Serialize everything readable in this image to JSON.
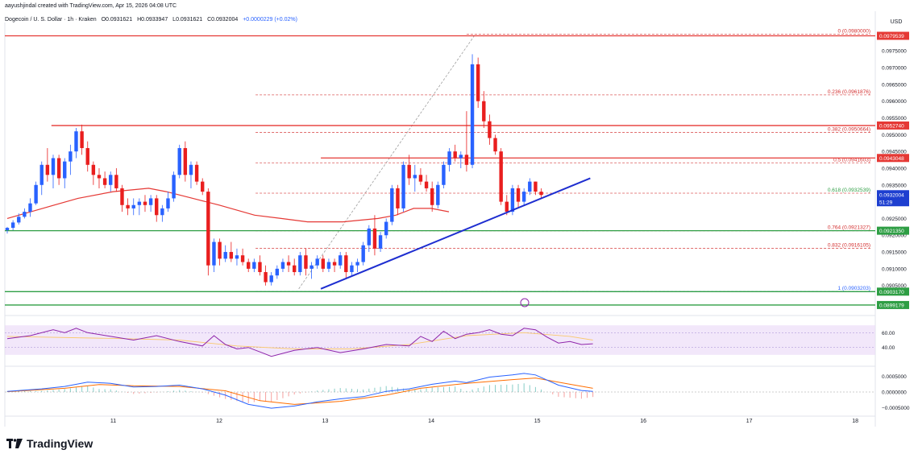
{
  "header": {
    "byline": "aayushjindal created with TradingView.com, Apr 15, 2026 04:08 UTC",
    "symbol": "Dogecoin / U. S. Dollar · 1h · Kraken",
    "open": "O0.0931621",
    "high": "H0.0933947",
    "low": "L0.0931621",
    "close": "C0.0932004",
    "change": "+0.0000229 (+0.02%)"
  },
  "brand": {
    "name": "TradingView"
  },
  "colors": {
    "up": "#2962ff",
    "down": "#e91e1e",
    "sma": "#e53935",
    "support": "#2e9e44",
    "resistance": "#e53935",
    "trendline": "#1e2ed0",
    "fib": "#d32f2f",
    "rsi_band": "#ead7f7",
    "rsi": "#8e24aa",
    "macd": "#2962ff",
    "signal": "#ff6d00"
  },
  "chart_data": [
    {
      "type": "candlestick",
      "currency": "USD",
      "x_ticks": [
        "11",
        "12",
        "13",
        "14",
        "15",
        "16",
        "17",
        "18"
      ],
      "x_tick_hours": [
        24,
        48,
        72,
        96,
        120,
        144,
        168,
        192
      ],
      "ylim": [
        0.0897,
        0.09825
      ],
      "y_ticks": [
        0.0905,
        0.091,
        0.0915,
        0.092,
        0.0925,
        0.093,
        0.0935,
        0.094,
        0.0945,
        0.095,
        0.0955,
        0.096,
        0.0965,
        0.097,
        0.0975
      ],
      "y_tick_labels": [
        "0.0905000",
        "0.0910000",
        "0.0915000",
        "0.0920000",
        "0.0925000",
        "0.0930000",
        "0.0935000",
        "0.0940000",
        "0.0945000",
        "0.0950000",
        "0.0955000",
        "0.0960000",
        "0.0965000",
        "0.0970000",
        "0.0975000"
      ],
      "price_levels": [
        {
          "value": 0.09795,
          "label": "0.0979539",
          "kind": "resistance"
        },
        {
          "value": 0.095274,
          "label": "0.0952740",
          "kind": "resistance"
        },
        {
          "value": 0.0943048,
          "label": "0.0943048",
          "kind": "resistance"
        },
        {
          "value": 0.092135,
          "label": "0.0921350",
          "kind": "support"
        },
        {
          "value": 0.090317,
          "label": "0.0903170",
          "kind": "support"
        },
        {
          "value": 0.0899179,
          "label": "0.0899179",
          "kind": "support"
        }
      ],
      "current_price": {
        "value": 0.0932004,
        "label": "0.0932004",
        "countdown": "51:29"
      },
      "fibonacci": [
        {
          "ratio": "0",
          "value": 0.098,
          "label": "0 (0.0980000)"
        },
        {
          "ratio": "0.236",
          "value": 0.0961876,
          "label": "0.236 (0.0961876)"
        },
        {
          "ratio": "0.382",
          "value": 0.0950664,
          "label": "0.382 (0.0950664)"
        },
        {
          "ratio": "0.5",
          "value": 0.0941603,
          "label": "0.5 (0.0941603)"
        },
        {
          "ratio": "0.618",
          "value": 0.0932539,
          "label": "0.618 (0.0932539)"
        },
        {
          "ratio": "0.764",
          "value": 0.0921327,
          "label": "0.764 (0.0921327)"
        },
        {
          "ratio": "0.832",
          "value": 0.0916105,
          "label": "0.832 (0.0916105)"
        },
        {
          "ratio": "1",
          "value": 0.0903203,
          "label": "1 (0.0903203)"
        }
      ],
      "fib_hour_range": [
        69,
        127
      ],
      "fib_diagonal": {
        "from_hour": 66,
        "from_value": 0.0904,
        "to_hour": 106,
        "to_value": 0.098
      },
      "trendline": {
        "from_hour": 71,
        "from_value": 0.0904,
        "to_hour": 132,
        "to_value": 0.0937
      },
      "start_hour": 0,
      "candles": [
        [
          0.09215,
          0.09225,
          0.09205,
          0.09222
        ],
        [
          0.09222,
          0.09245,
          0.09215,
          0.09238
        ],
        [
          0.09238,
          0.09265,
          0.09232,
          0.09255
        ],
        [
          0.09255,
          0.0928,
          0.0925,
          0.0927
        ],
        [
          0.0927,
          0.0931,
          0.09255,
          0.09295
        ],
        [
          0.09295,
          0.0936,
          0.0929,
          0.0935
        ],
        [
          0.0935,
          0.0942,
          0.0932,
          0.0941
        ],
        [
          0.0941,
          0.0946,
          0.0936,
          0.0938
        ],
        [
          0.0938,
          0.0944,
          0.0934,
          0.0943
        ],
        [
          0.0943,
          0.0944,
          0.0935,
          0.0937
        ],
        [
          0.0937,
          0.0943,
          0.0934,
          0.0942
        ],
        [
          0.0942,
          0.0947,
          0.0938,
          0.0945
        ],
        [
          0.0945,
          0.0952,
          0.0943,
          0.0951
        ],
        [
          0.0951,
          0.0953,
          0.0944,
          0.0946
        ],
        [
          0.0946,
          0.0948,
          0.0939,
          0.0941
        ],
        [
          0.0941,
          0.0942,
          0.0935,
          0.0938
        ],
        [
          0.0938,
          0.094,
          0.0934,
          0.0937
        ],
        [
          0.0937,
          0.0939,
          0.0934,
          0.0935
        ],
        [
          0.0935,
          0.0939,
          0.0933,
          0.0938
        ],
        [
          0.0938,
          0.094,
          0.0933,
          0.0934
        ],
        [
          0.0934,
          0.0935,
          0.0927,
          0.0929
        ],
        [
          0.0929,
          0.0931,
          0.0926,
          0.0928
        ],
        [
          0.0928,
          0.0931,
          0.0926,
          0.0929
        ],
        [
          0.0929,
          0.0931,
          0.0926,
          0.093
        ],
        [
          0.093,
          0.0932,
          0.0927,
          0.0929
        ],
        [
          0.0929,
          0.0932,
          0.0927,
          0.0931
        ],
        [
          0.0931,
          0.0932,
          0.0924,
          0.0926
        ],
        [
          0.0926,
          0.0929,
          0.0924,
          0.0928
        ],
        [
          0.0928,
          0.0933,
          0.0927,
          0.0931
        ],
        [
          0.0931,
          0.0939,
          0.093,
          0.0938
        ],
        [
          0.0938,
          0.0947,
          0.0937,
          0.0946
        ],
        [
          0.0946,
          0.0948,
          0.0936,
          0.0938
        ],
        [
          0.0938,
          0.0942,
          0.0934,
          0.0941
        ],
        [
          0.0941,
          0.0942,
          0.0935,
          0.0936
        ],
        [
          0.0936,
          0.0937,
          0.0932,
          0.0933
        ],
        [
          0.0933,
          0.0934,
          0.0908,
          0.0911
        ],
        [
          0.0911,
          0.0919,
          0.0909,
          0.0918
        ],
        [
          0.0918,
          0.0919,
          0.0911,
          0.0913
        ],
        [
          0.0913,
          0.0917,
          0.0912,
          0.0915
        ],
        [
          0.0915,
          0.0918,
          0.0912,
          0.0913
        ],
        [
          0.0913,
          0.0916,
          0.0911,
          0.0914
        ],
        [
          0.0914,
          0.0916,
          0.0911,
          0.0912
        ],
        [
          0.0912,
          0.0913,
          0.0909,
          0.091
        ],
        [
          0.091,
          0.0913,
          0.0909,
          0.0912
        ],
        [
          0.0912,
          0.0914,
          0.0908,
          0.0909
        ],
        [
          0.0909,
          0.0911,
          0.0905,
          0.0906
        ],
        [
          0.0906,
          0.0909,
          0.0905,
          0.0908
        ],
        [
          0.0908,
          0.0911,
          0.0907,
          0.091
        ],
        [
          0.091,
          0.0913,
          0.0909,
          0.0912
        ],
        [
          0.0912,
          0.0914,
          0.0909,
          0.0911
        ],
        [
          0.0911,
          0.0913,
          0.0908,
          0.0909
        ],
        [
          0.0909,
          0.0915,
          0.0908,
          0.0914
        ],
        [
          0.0914,
          0.0916,
          0.0908,
          0.091
        ],
        [
          0.091,
          0.0912,
          0.0907,
          0.0911
        ],
        [
          0.0911,
          0.0914,
          0.091,
          0.0913
        ],
        [
          0.0913,
          0.0914,
          0.0909,
          0.091
        ],
        [
          0.091,
          0.0913,
          0.0909,
          0.0912
        ],
        [
          0.0912,
          0.0913,
          0.0909,
          0.0911
        ],
        [
          0.0911,
          0.0915,
          0.091,
          0.0914
        ],
        [
          0.0914,
          0.0915,
          0.0907,
          0.0909
        ],
        [
          0.0909,
          0.0912,
          0.0908,
          0.0911
        ],
        [
          0.0911,
          0.0913,
          0.0909,
          0.0912
        ],
        [
          0.0912,
          0.0918,
          0.0911,
          0.0917
        ],
        [
          0.0917,
          0.0923,
          0.0915,
          0.0922
        ],
        [
          0.0922,
          0.0926,
          0.0914,
          0.0916
        ],
        [
          0.0916,
          0.0921,
          0.0915,
          0.092
        ],
        [
          0.092,
          0.0925,
          0.0919,
          0.0924
        ],
        [
          0.0924,
          0.0935,
          0.0923,
          0.0934
        ],
        [
          0.0934,
          0.0935,
          0.0926,
          0.0928
        ],
        [
          0.0928,
          0.0942,
          0.0927,
          0.0941
        ],
        [
          0.0941,
          0.0944,
          0.0935,
          0.0937
        ],
        [
          0.0937,
          0.0941,
          0.0933,
          0.0938
        ],
        [
          0.0938,
          0.094,
          0.0935,
          0.0936
        ],
        [
          0.0936,
          0.0938,
          0.0933,
          0.0934
        ],
        [
          0.0934,
          0.0936,
          0.0927,
          0.0929
        ],
        [
          0.0929,
          0.0936,
          0.0928,
          0.0935
        ],
        [
          0.0935,
          0.0942,
          0.0934,
          0.0941
        ],
        [
          0.0941,
          0.0946,
          0.0939,
          0.0945
        ],
        [
          0.0945,
          0.0947,
          0.0942,
          0.0943
        ],
        [
          0.0943,
          0.0945,
          0.094,
          0.0944
        ],
        [
          0.0944,
          0.0957,
          0.0939,
          0.0941
        ],
        [
          0.0941,
          0.0974,
          0.094,
          0.0971
        ],
        [
          0.0971,
          0.0973,
          0.0958,
          0.096
        ],
        [
          0.096,
          0.0963,
          0.0952,
          0.0954
        ],
        [
          0.0954,
          0.0956,
          0.0947,
          0.0949
        ],
        [
          0.0949,
          0.095,
          0.0944,
          0.0945
        ],
        [
          0.0945,
          0.0946,
          0.0929,
          0.093
        ],
        [
          0.093,
          0.0932,
          0.0926,
          0.0927
        ],
        [
          0.0927,
          0.0935,
          0.0926,
          0.0934
        ],
        [
          0.0934,
          0.0935,
          0.0928,
          0.093
        ],
        [
          0.093,
          0.0934,
          0.0929,
          0.0933
        ],
        [
          0.0933,
          0.0937,
          0.0932,
          0.0936
        ],
        [
          0.0936,
          0.0936,
          0.0932,
          0.0933
        ],
        [
          0.0933,
          0.0934,
          0.0931,
          0.0932
        ]
      ],
      "sma": [
        [
          0,
          0.0925
        ],
        [
          8,
          0.0928
        ],
        [
          16,
          0.0931
        ],
        [
          24,
          0.0933
        ],
        [
          32,
          0.0934
        ],
        [
          36,
          0.0933
        ],
        [
          42,
          0.0931
        ],
        [
          48,
          0.0929
        ],
        [
          56,
          0.0926
        ],
        [
          62,
          0.0925
        ],
        [
          68,
          0.0924
        ],
        [
          76,
          0.0924
        ],
        [
          84,
          0.0925
        ],
        [
          88,
          0.0926
        ],
        [
          92,
          0.0928
        ],
        [
          96,
          0.0928
        ],
        [
          100,
          0.0927
        ]
      ]
    },
    {
      "type": "line",
      "name_hidden": true,
      "ylim": [
        20,
        80
      ],
      "y_tick_labels": [
        "60.00",
        "40.00"
      ],
      "y_ticks": [
        60,
        40
      ],
      "band": [
        30,
        70
      ],
      "values": [
        [
          0,
          52
        ],
        [
          4,
          56
        ],
        [
          8,
          64
        ],
        [
          10,
          60
        ],
        [
          12,
          66
        ],
        [
          14,
          60
        ],
        [
          18,
          55
        ],
        [
          22,
          50
        ],
        [
          26,
          56
        ],
        [
          30,
          48
        ],
        [
          34,
          42
        ],
        [
          36,
          56
        ],
        [
          38,
          44
        ],
        [
          40,
          38
        ],
        [
          42,
          40
        ],
        [
          44,
          34
        ],
        [
          46,
          28
        ],
        [
          50,
          36
        ],
        [
          54,
          40
        ],
        [
          58,
          33
        ],
        [
          62,
          38
        ],
        [
          66,
          44
        ],
        [
          70,
          42
        ],
        [
          72,
          55
        ],
        [
          74,
          48
        ],
        [
          76,
          62
        ],
        [
          78,
          52
        ],
        [
          80,
          58
        ],
        [
          82,
          60
        ],
        [
          84,
          64
        ],
        [
          86,
          58
        ],
        [
          88,
          56
        ],
        [
          90,
          66
        ],
        [
          92,
          64
        ],
        [
          94,
          54
        ],
        [
          96,
          46
        ],
        [
          98,
          48
        ],
        [
          100,
          44
        ],
        [
          102,
          45
        ]
      ],
      "signal": [
        [
          0,
          55
        ],
        [
          20,
          52
        ],
        [
          30,
          50
        ],
        [
          40,
          42
        ],
        [
          50,
          38
        ],
        [
          60,
          38
        ],
        [
          70,
          44
        ],
        [
          80,
          56
        ],
        [
          90,
          60
        ],
        [
          98,
          55
        ],
        [
          102,
          50
        ]
      ]
    },
    {
      "type": "line",
      "ylim": [
        -0.0007,
        0.0007
      ],
      "y_tick_labels": [
        "0.0005000",
        "0.0000000",
        "−0.0005000"
      ],
      "y_ticks": [
        0.0005,
        0,
        -0.0005
      ],
      "macd": [
        [
          0,
          2e-05
        ],
        [
          6,
          0.0001
        ],
        [
          10,
          0.00018
        ],
        [
          14,
          0.00032
        ],
        [
          18,
          0.00028
        ],
        [
          22,
          0.00016
        ],
        [
          26,
          0.00018
        ],
        [
          30,
          0.00022
        ],
        [
          34,
          0.0001
        ],
        [
          38,
          -0.0001
        ],
        [
          42,
          -0.0004
        ],
        [
          46,
          -0.00052
        ],
        [
          50,
          -0.00045
        ],
        [
          54,
          -0.00032
        ],
        [
          58,
          -0.00022
        ],
        [
          62,
          -0.00015
        ],
        [
          66,
          2e-05
        ],
        [
          70,
          0.0001
        ],
        [
          74,
          0.00025
        ],
        [
          78,
          0.00035
        ],
        [
          80,
          0.0003
        ],
        [
          84,
          0.00048
        ],
        [
          88,
          0.00055
        ],
        [
          90,
          0.0006
        ],
        [
          92,
          0.00055
        ],
        [
          96,
          0.00022
        ],
        [
          100,
          5e-05
        ],
        [
          102,
          2e-05
        ]
      ],
      "signal": [
        [
          0,
          1e-05
        ],
        [
          10,
          0.00012
        ],
        [
          16,
          0.00024
        ],
        [
          22,
          0.0002
        ],
        [
          30,
          0.00018
        ],
        [
          38,
          4e-05
        ],
        [
          44,
          -0.00028
        ],
        [
          50,
          -0.0004
        ],
        [
          58,
          -0.0003
        ],
        [
          66,
          -0.0001
        ],
        [
          72,
          0.00012
        ],
        [
          80,
          0.00028
        ],
        [
          88,
          0.0004
        ],
        [
          92,
          0.00045
        ],
        [
          98,
          0.00025
        ],
        [
          102,
          0.00012
        ]
      ]
    }
  ]
}
